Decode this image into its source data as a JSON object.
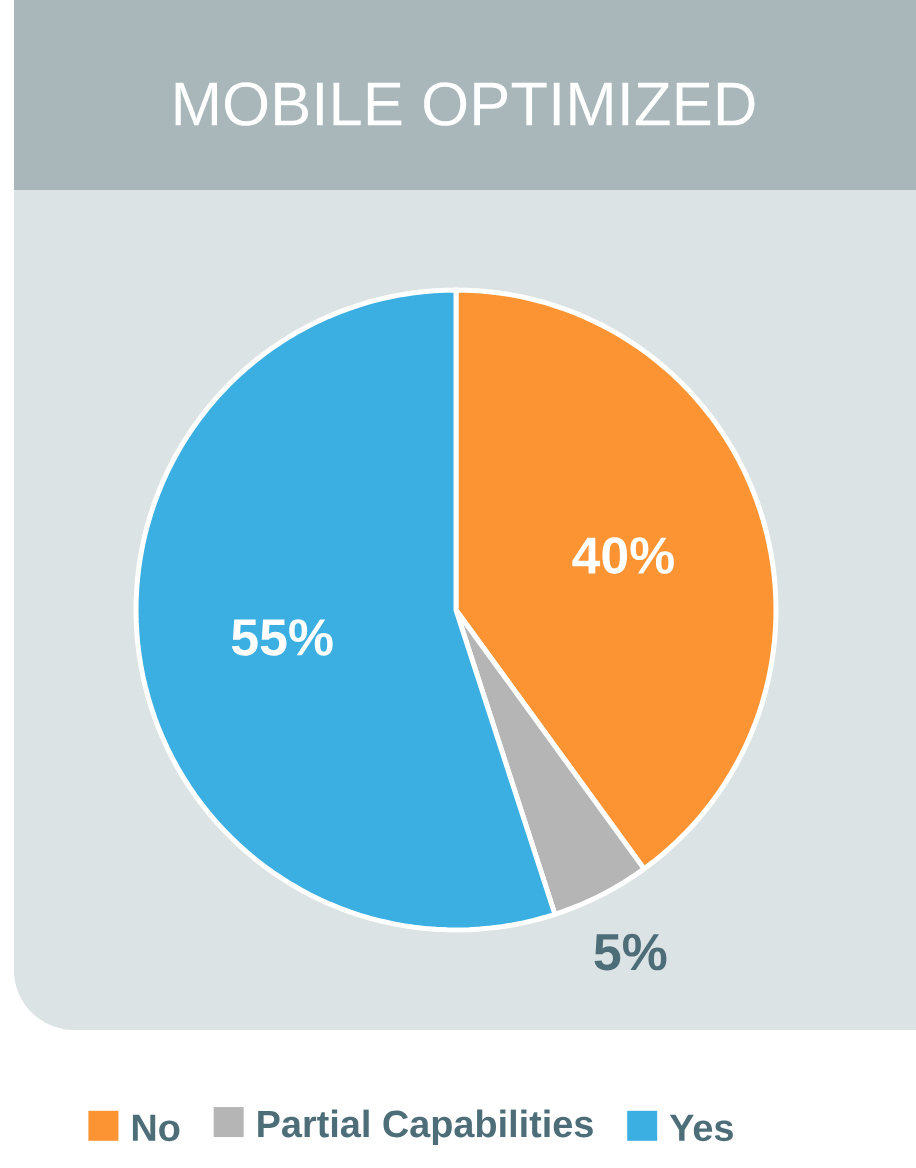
{
  "chart_data": {
    "type": "pie",
    "title": "MOBILE OPTIMIZED",
    "categories": [
      "No",
      "Partial Capabilities",
      "Yes"
    ],
    "values": [
      40,
      5,
      55
    ],
    "colors": [
      "#fd9434",
      "#b5b5b5",
      "#3baee2"
    ],
    "value_labels": [
      "40%",
      "5%",
      "55%"
    ],
    "legend": "bottom"
  }
}
